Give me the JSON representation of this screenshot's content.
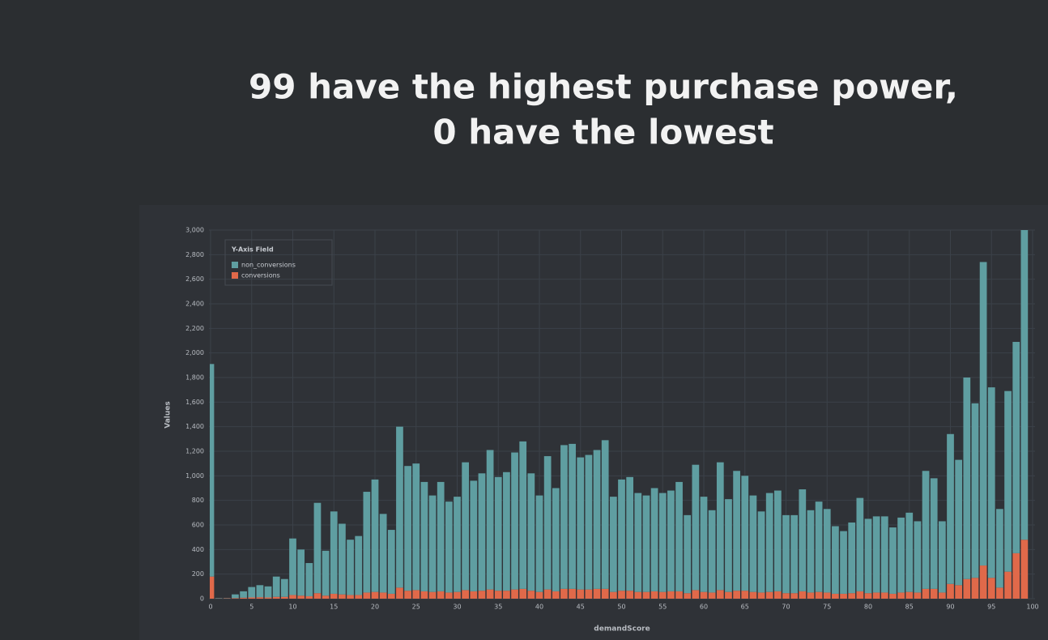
{
  "chart_data": {
    "type": "bar",
    "stacked": true,
    "title_lines": [
      "99 have the highest purchase power,",
      "0 have the lowest"
    ],
    "x_label": "demandScore",
    "y_label": "Values",
    "legend_title": "Y-Axis Field",
    "legend": "upper left",
    "grid": true,
    "x": [
      0,
      1,
      2,
      3,
      4,
      5,
      6,
      7,
      8,
      9,
      10,
      11,
      12,
      13,
      14,
      15,
      16,
      17,
      18,
      19,
      20,
      21,
      22,
      23,
      24,
      25,
      26,
      27,
      28,
      29,
      30,
      31,
      32,
      33,
      34,
      35,
      36,
      37,
      38,
      39,
      40,
      41,
      42,
      43,
      44,
      45,
      46,
      47,
      48,
      49,
      50,
      51,
      52,
      53,
      54,
      55,
      56,
      57,
      58,
      59,
      60,
      61,
      62,
      63,
      64,
      65,
      66,
      67,
      68,
      69,
      70,
      71,
      72,
      73,
      74,
      75,
      76,
      77,
      78,
      79,
      80,
      81,
      82,
      83,
      84,
      85,
      86,
      87,
      88,
      89,
      90,
      91,
      92,
      93,
      94,
      95,
      96,
      97,
      98,
      99
    ],
    "series": [
      {
        "name": "non_conversions",
        "color": "#5f9ea1",
        "values": [
          1730,
          3,
          2,
          30,
          52,
          85,
          98,
          90,
          165,
          145,
          460,
          375,
          270,
          735,
          365,
          670,
          575,
          450,
          480,
          820,
          915,
          640,
          520,
          1310,
          1015,
          1030,
          890,
          785,
          890,
          740,
          775,
          1040,
          900,
          955,
          1135,
          925,
          965,
          1115,
          1200,
          955,
          785,
          1085,
          840,
          1170,
          1180,
          1075,
          1095,
          1130,
          1210,
          775,
          905,
          925,
          805,
          785,
          840,
          805,
          820,
          890,
          635,
          1020,
          775,
          670,
          1040,
          755,
          975,
          935,
          785,
          660,
          805,
          820,
          635,
          635,
          830,
          670,
          735,
          680,
          550,
          510,
          575,
          760,
          605,
          620,
          620,
          540,
          610,
          645,
          580,
          960,
          900,
          580,
          1220,
          1020,
          1640,
          1420,
          2470,
          1550,
          640,
          1470,
          1720,
          2520
        ]
      },
      {
        "name": "conversions",
        "color": "#e0694a",
        "values": [
          180,
          2,
          3,
          5,
          8,
          10,
          12,
          10,
          15,
          15,
          30,
          25,
          20,
          45,
          25,
          40,
          35,
          30,
          30,
          50,
          55,
          50,
          40,
          90,
          65,
          70,
          60,
          55,
          60,
          50,
          55,
          70,
          60,
          65,
          75,
          65,
          65,
          75,
          80,
          65,
          55,
          75,
          60,
          80,
          80,
          75,
          75,
          80,
          80,
          55,
          65,
          65,
          55,
          55,
          60,
          55,
          60,
          60,
          45,
          70,
          55,
          50,
          70,
          55,
          65,
          65,
          55,
          50,
          55,
          60,
          45,
          45,
          60,
          50,
          55,
          50,
          40,
          40,
          45,
          60,
          45,
          50,
          50,
          40,
          50,
          55,
          50,
          80,
          80,
          50,
          120,
          110,
          160,
          170,
          270,
          170,
          90,
          220,
          370,
          480
        ]
      }
    ],
    "xlim": [
      0,
      100
    ],
    "xticks": [
      0,
      5,
      10,
      15,
      20,
      25,
      30,
      35,
      40,
      45,
      50,
      55,
      60,
      65,
      70,
      75,
      80,
      85,
      90,
      95,
      100
    ],
    "ylim": [
      0,
      3000
    ],
    "yticks": [
      0,
      200,
      400,
      600,
      800,
      {
        "value": 1000,
        "label": "1,000"
      },
      {
        "value": 1200,
        "label": "1,200"
      },
      {
        "value": 1400,
        "label": "1,400"
      },
      {
        "value": 1600,
        "label": "1,600"
      },
      {
        "value": 1800,
        "label": "1,800"
      },
      {
        "value": 2000,
        "label": "2,000"
      },
      {
        "value": 2200,
        "label": "2,200"
      },
      {
        "value": 2400,
        "label": "2,400"
      },
      {
        "value": 2600,
        "label": "2,600"
      },
      {
        "value": 2800,
        "label": "2,800"
      },
      {
        "value": 3000,
        "label": "3,000"
      }
    ]
  }
}
